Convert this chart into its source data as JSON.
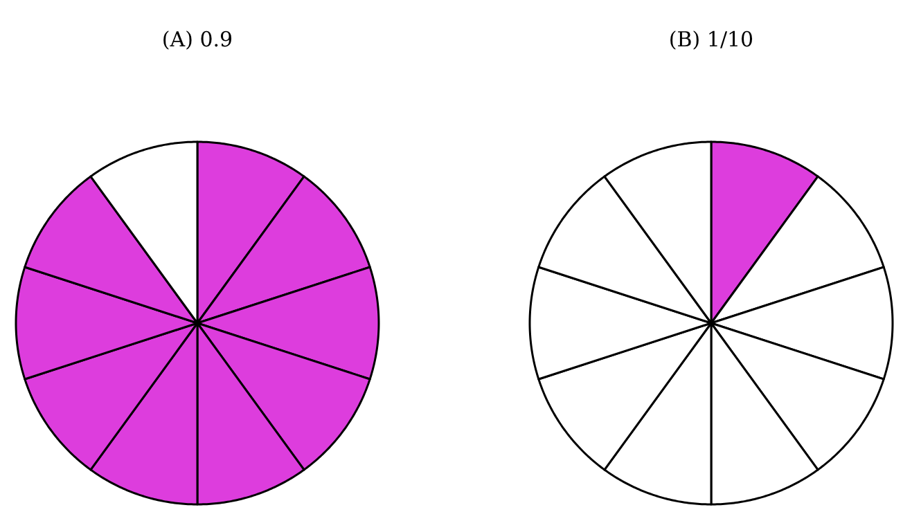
{
  "chart_data": [
    {
      "type": "pie",
      "title": "(A) 0.9",
      "categories": [
        null,
        null,
        null,
        null,
        null,
        null,
        null,
        null,
        null,
        null
      ],
      "values": [
        10,
        10,
        10,
        10,
        10,
        10,
        10,
        10,
        10,
        10
      ],
      "colors": [
        "#dd3ddd",
        "#dd3ddd",
        "#dd3ddd",
        "#dd3ddd",
        "#dd3ddd",
        "#dd3ddd",
        "#dd3ddd",
        "#dd3ddd",
        "#dd3ddd",
        "#ffffff"
      ]
    },
    {
      "type": "pie",
      "title": "(B) 1/10",
      "categories": [
        null,
        null,
        null,
        null,
        null,
        null,
        null,
        null,
        null,
        null
      ],
      "values": [
        10,
        10,
        10,
        10,
        10,
        10,
        10,
        10,
        10,
        10
      ],
      "colors": [
        "#dd3ddd",
        "#ffffff",
        "#ffffff",
        "#ffffff",
        "#ffffff",
        "#ffffff",
        "#ffffff",
        "#ffffff",
        "#ffffff",
        "#ffffff"
      ]
    }
  ]
}
